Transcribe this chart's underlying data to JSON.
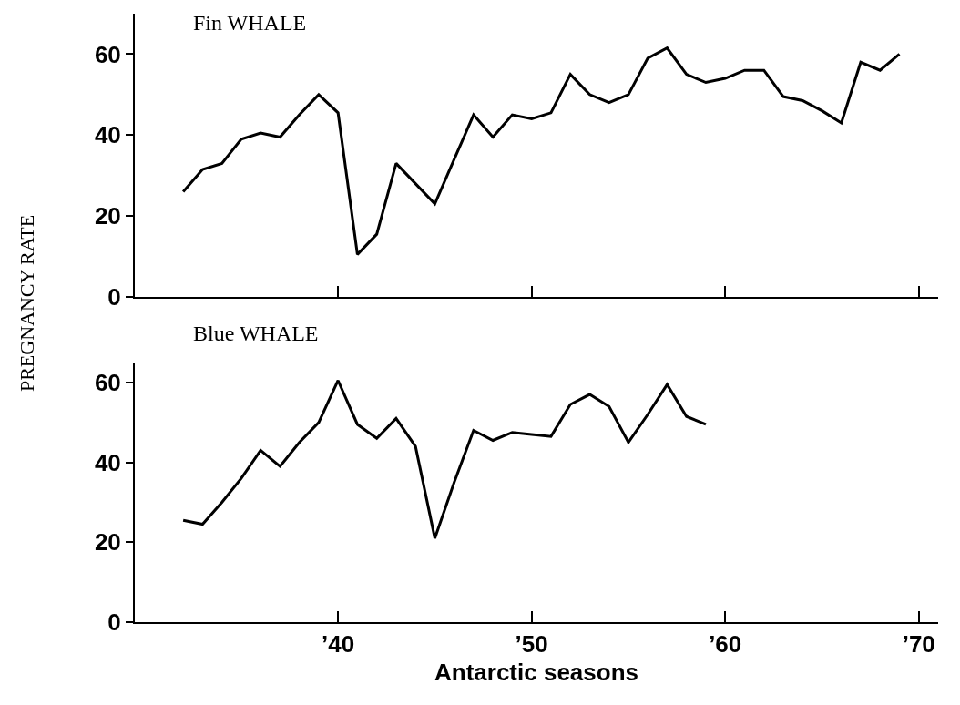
{
  "chart_data": [
    {
      "type": "line",
      "title": "Fin WHALE",
      "ylabel": "PREGNANCY RATE",
      "x": [
        1932,
        1933,
        1934,
        1935,
        1936,
        1937,
        1938,
        1939,
        1940,
        1941,
        1942,
        1943,
        1944,
        1945,
        1946,
        1947,
        1948,
        1949,
        1950,
        1951,
        1952,
        1953,
        1954,
        1955,
        1956,
        1957,
        1958,
        1959,
        1960,
        1961,
        1962,
        1963,
        1964,
        1965,
        1966,
        1967,
        1968,
        1969
      ],
      "series": [
        {
          "color": "#000000",
          "values": [
            26,
            31.5,
            33,
            39,
            40.5,
            39.5,
            45,
            50,
            45.5,
            10.5,
            15.5,
            33,
            28,
            23,
            34,
            45,
            39.5,
            45,
            44,
            45.5,
            55,
            50,
            48,
            50,
            59,
            61.5,
            55,
            53,
            54,
            56,
            56,
            49.5,
            48.5,
            46,
            43,
            58,
            56,
            60
          ]
        }
      ],
      "xlim": [
        1929.5,
        1971
      ],
      "xticks": [
        {
          "value": 1940,
          "label": null
        },
        {
          "value": 1950,
          "label": null
        },
        {
          "value": 1960,
          "label": null
        },
        {
          "value": 1970,
          "label": null
        }
      ],
      "ylim": [
        0,
        70
      ],
      "yticks": [
        0,
        20,
        40,
        60
      ],
      "tick_labels": "y",
      "marker": "none",
      "line_style": "solid"
    },
    {
      "type": "line",
      "title": "Blue WHALE",
      "xlabel": "Antarctic seasons",
      "x": [
        1932,
        1933,
        1934,
        1935,
        1936,
        1937,
        1938,
        1939,
        1940,
        1941,
        1942,
        1943,
        1944,
        1945,
        1946,
        1947,
        1948,
        1949,
        1950,
        1951,
        1952,
        1953,
        1954,
        1955,
        1956,
        1957,
        1958,
        1959
      ],
      "series": [
        {
          "color": "#000000",
          "values": [
            25.5,
            24.5,
            30,
            36,
            43,
            39,
            45,
            50,
            60.5,
            49.5,
            46,
            51,
            44,
            21,
            35,
            48,
            45.5,
            47.5,
            47,
            46.5,
            54.5,
            57,
            54,
            45,
            52,
            59.5,
            51.5,
            49.5
          ]
        }
      ],
      "xlim": [
        1929.5,
        1971
      ],
      "xticks": [
        {
          "value": 1940,
          "label": "’40"
        },
        {
          "value": 1950,
          "label": "’50"
        },
        {
          "value": 1960,
          "label": "’60"
        },
        {
          "value": 1970,
          "label": "’70"
        }
      ],
      "ylim": [
        0,
        65
      ],
      "yticks": [
        0,
        20,
        40,
        60
      ],
      "marker": "none",
      "line_style": "solid"
    }
  ]
}
